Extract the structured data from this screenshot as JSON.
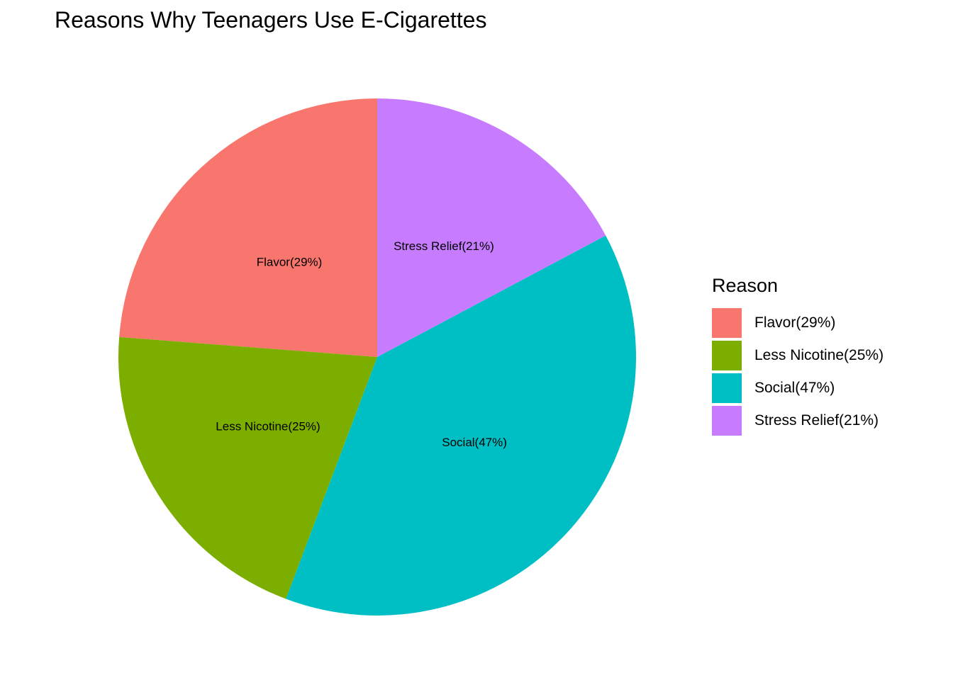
{
  "chart_data": {
    "type": "pie",
    "title": "Reasons Why Teenagers Use E-Cigarettes",
    "legend_title": "Reason",
    "legend_position": "right",
    "categories": [
      "Flavor(29%)",
      "Less Nicotine(25%)",
      "Social(47%)",
      "Stress Relief(21%)"
    ],
    "values": [
      29,
      25,
      47,
      21
    ],
    "colors": [
      "#F8766D",
      "#7CAE00",
      "#00BFC4",
      "#C77CFF"
    ],
    "start_angle": "12 o'clock",
    "direction": "counterclockwise"
  }
}
